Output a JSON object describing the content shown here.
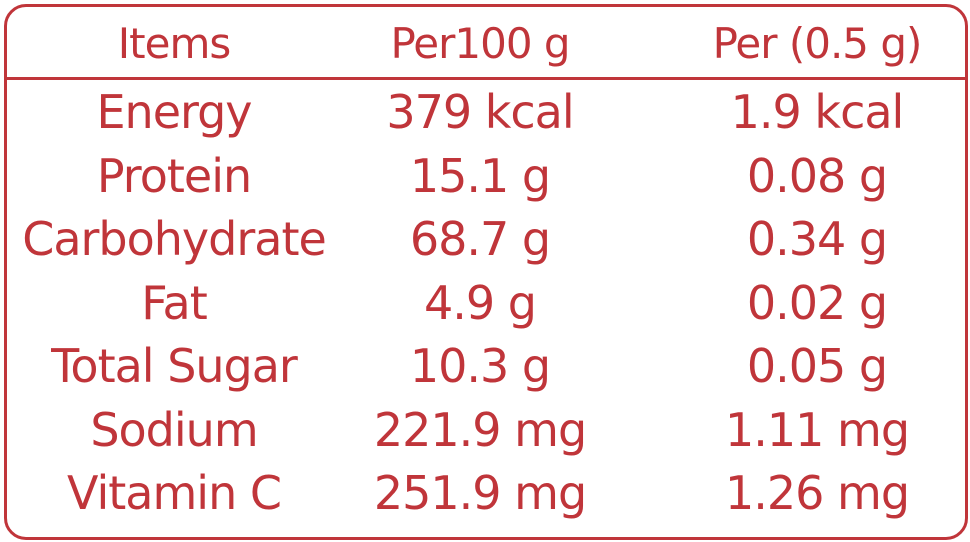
{
  "table": {
    "header": [
      "Items",
      "Per100 g",
      "Per (0.5 g)"
    ],
    "rows": [
      [
        "Energy",
        "379 kcal",
        "1.9 kcal"
      ],
      [
        "Protein",
        "15.1 g",
        "0.08 g"
      ],
      [
        "Carbohydrate",
        "68.7 g",
        "0.34 g"
      ],
      [
        "Fat",
        "4.9 g",
        "0.02 g"
      ],
      [
        "Total Sugar",
        "10.3 g",
        "0.05 g"
      ],
      [
        "Sodium",
        "221.9 mg",
        "1.11 mg"
      ],
      [
        "Vitamin C",
        "251.9 mg",
        "1.26 mg"
      ]
    ]
  }
}
